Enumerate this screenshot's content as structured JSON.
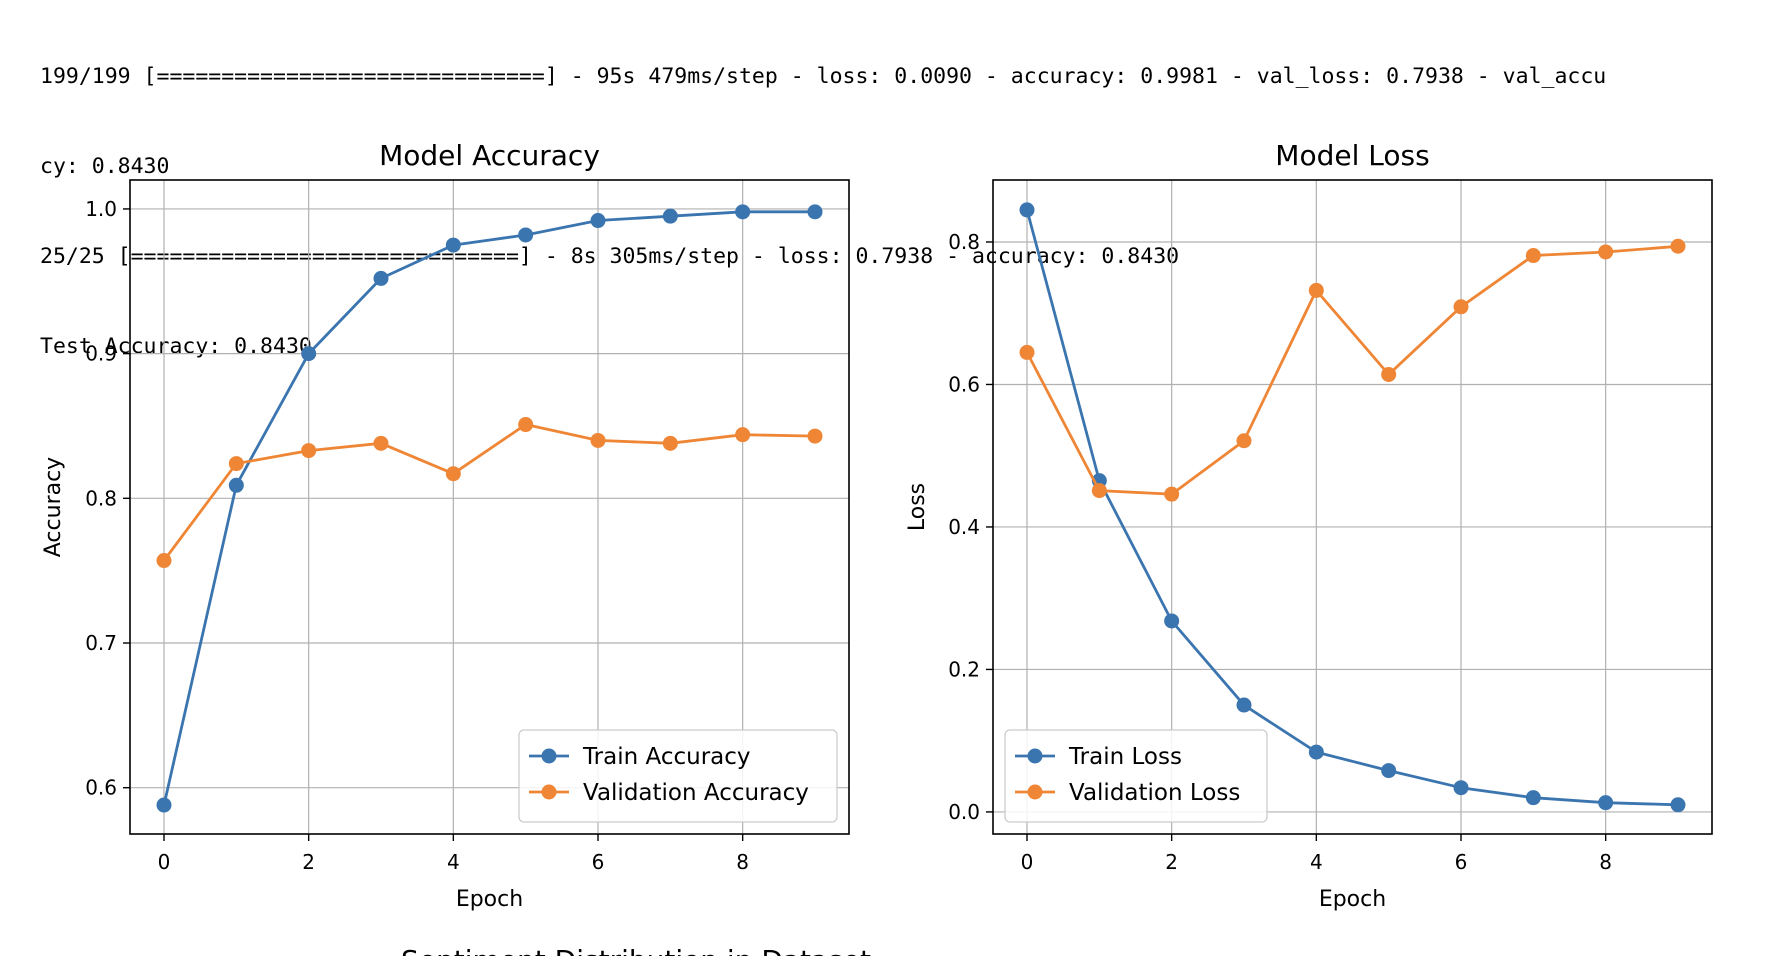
{
  "console": {
    "lines": [
      "199/199 [==============================] - 95s 479ms/step - loss: 0.0090 - accuracy: 0.9981 - val_loss: 0.7938 - val_accu",
      "cy: 0.8430",
      "25/25 [==============================] - 8s 305ms/step - loss: 0.7938 - accuracy: 0.8430",
      "Test Accuracy: 0.8430"
    ]
  },
  "colors": {
    "train": "#3b75af",
    "validation": "#ef8636",
    "grid": "#b0b0b0"
  },
  "chart_data": [
    {
      "type": "line",
      "title": "Model Accuracy",
      "xlabel": "Epoch",
      "ylabel": "Accuracy",
      "x": [
        0,
        1,
        2,
        3,
        4,
        5,
        6,
        7,
        8,
        9
      ],
      "xlim": [
        -0.47,
        9.47
      ],
      "ylim": [
        0.568,
        1.02
      ],
      "xticks": [
        0,
        2,
        4,
        6,
        8
      ],
      "yticks": [
        0.6,
        0.7,
        0.8,
        0.9,
        1.0
      ],
      "grid": true,
      "legend": "lower right",
      "series": [
        {
          "name": "Train Accuracy",
          "values": [
            0.588,
            0.809,
            0.9,
            0.952,
            0.975,
            0.982,
            0.992,
            0.995,
            0.998,
            0.998
          ]
        },
        {
          "name": "Validation Accuracy",
          "values": [
            0.757,
            0.824,
            0.833,
            0.838,
            0.817,
            0.851,
            0.84,
            0.838,
            0.844,
            0.843
          ]
        }
      ]
    },
    {
      "type": "line",
      "title": "Model Loss",
      "xlabel": "Epoch",
      "ylabel": "Loss",
      "x": [
        0,
        1,
        2,
        3,
        4,
        5,
        6,
        7,
        8,
        9
      ],
      "xlim": [
        -0.47,
        9.47
      ],
      "ylim": [
        -0.031,
        0.887
      ],
      "xticks": [
        0,
        2,
        4,
        6,
        8
      ],
      "yticks": [
        0.0,
        0.2,
        0.4,
        0.6,
        0.8
      ],
      "grid": true,
      "legend": "lower left",
      "series": [
        {
          "name": "Train Loss",
          "values": [
            0.845,
            0.465,
            0.268,
            0.15,
            0.084,
            0.058,
            0.034,
            0.02,
            0.013,
            0.01
          ]
        },
        {
          "name": "Validation Loss",
          "values": [
            0.645,
            0.451,
            0.446,
            0.521,
            0.732,
            0.614,
            0.709,
            0.781,
            0.786,
            0.794
          ]
        }
      ]
    }
  ],
  "next_figure_title": "Sentiment Distribution in Dataset"
}
